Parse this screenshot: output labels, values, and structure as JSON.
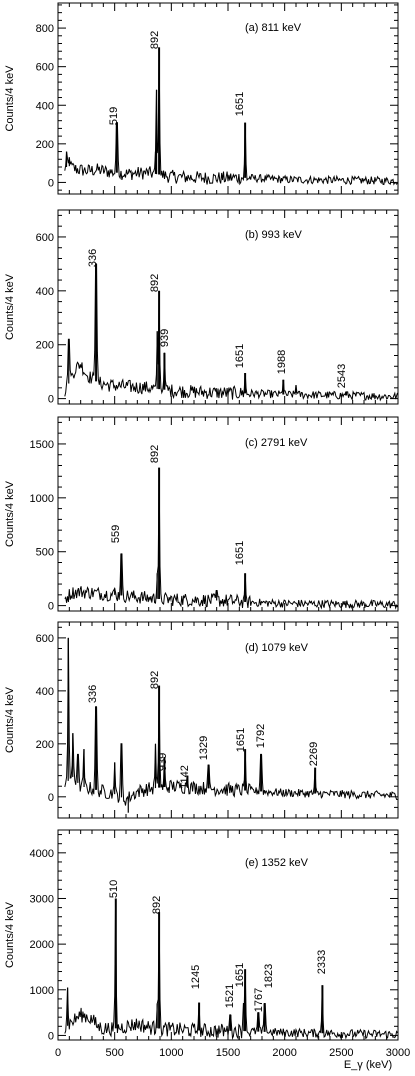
{
  "figure": {
    "xlabel": "E_γ (keV)",
    "x_ticks": [
      "0",
      "500",
      "1000",
      "1500",
      "2000",
      "2500",
      "3000"
    ]
  },
  "chart_data": [
    {
      "type": "line",
      "panel": "a",
      "title": "(a) 811 keV",
      "ylabel": "Counts/4 keV",
      "xlim": [
        0,
        3000
      ],
      "ylim": [
        -60,
        930
      ],
      "y_ticks": [
        0,
        200,
        400,
        600,
        800
      ],
      "grid": false,
      "baseline": [
        [
          40,
          10
        ],
        [
          80,
          90
        ],
        [
          150,
          70
        ],
        [
          250,
          60
        ],
        [
          350,
          65
        ],
        [
          450,
          55
        ],
        [
          600,
          45
        ],
        [
          800,
          50
        ],
        [
          1000,
          30
        ],
        [
          1200,
          25
        ],
        [
          1400,
          22
        ],
        [
          1600,
          25
        ],
        [
          1800,
          20
        ],
        [
          2000,
          15
        ],
        [
          2400,
          12
        ],
        [
          3000,
          8
        ]
      ],
      "peaks": [
        [
          519,
          310,
          1
        ],
        [
          892,
          700,
          1
        ],
        [
          870,
          480,
          0
        ],
        [
          860,
          160,
          0
        ],
        [
          1651,
          310,
          1
        ],
        [
          75,
          160,
          0
        ],
        [
          100,
          130,
          0
        ]
      ],
      "labels": [
        "519",
        "892",
        "1651"
      ]
    },
    {
      "type": "line",
      "panel": "b",
      "title": "(b) 993 keV",
      "ylabel": "Counts/4 keV",
      "xlim": [
        0,
        3000
      ],
      "ylim": [
        -20,
        700
      ],
      "y_ticks": [
        0,
        200,
        400,
        600
      ],
      "grid": false,
      "baseline": [
        [
          50,
          20
        ],
        [
          100,
          60
        ],
        [
          150,
          110
        ],
        [
          200,
          130
        ],
        [
          250,
          90
        ],
        [
          350,
          60
        ],
        [
          450,
          50
        ],
        [
          600,
          45
        ],
        [
          800,
          40
        ],
        [
          1000,
          30
        ],
        [
          1200,
          25
        ],
        [
          1400,
          22
        ],
        [
          1600,
          20
        ],
        [
          2000,
          15
        ],
        [
          2500,
          12
        ],
        [
          3000,
          8
        ]
      ],
      "peaks": [
        [
          336,
          500,
          1
        ],
        [
          892,
          400,
          1
        ],
        [
          875,
          250,
          0
        ],
        [
          939,
          170,
          1
        ],
        [
          1651,
          95,
          1
        ],
        [
          1988,
          70,
          1
        ],
        [
          2100,
          50,
          0
        ],
        [
          2543,
          25,
          1
        ],
        [
          95,
          220,
          0
        ]
      ],
      "labels": [
        "336",
        "892",
        "939",
        "1651",
        "1988",
        "2543"
      ]
    },
    {
      "type": "line",
      "panel": "c",
      "title": "(c) 2791 keV",
      "ylabel": "Counts/4 keV",
      "xlim": [
        0,
        3000
      ],
      "ylim": [
        -50,
        1750
      ],
      "y_ticks": [
        0,
        500,
        1000,
        1500
      ],
      "grid": false,
      "baseline": [
        [
          60,
          60
        ],
        [
          120,
          120
        ],
        [
          200,
          130
        ],
        [
          300,
          120
        ],
        [
          400,
          110
        ],
        [
          500,
          100
        ],
        [
          700,
          80
        ],
        [
          900,
          60
        ],
        [
          1100,
          55
        ],
        [
          1300,
          50
        ],
        [
          1500,
          45
        ],
        [
          1700,
          30
        ],
        [
          2000,
          20
        ],
        [
          2500,
          15
        ],
        [
          3000,
          10
        ]
      ],
      "peaks": [
        [
          559,
          480,
          1
        ],
        [
          892,
          1280,
          1
        ],
        [
          875,
          300,
          0
        ],
        [
          1400,
          140,
          0
        ],
        [
          1651,
          300,
          1
        ],
        [
          500,
          160,
          0
        ]
      ],
      "labels": [
        "559",
        "892",
        "1651"
      ]
    },
    {
      "type": "line",
      "panel": "d",
      "title": "(d) 1079 keV",
      "ylabel": "Counts/4 keV",
      "xlim": [
        0,
        3000
      ],
      "ylim": [
        -80,
        660
      ],
      "y_ticks": [
        0,
        200,
        400,
        600
      ],
      "grid": false,
      "baseline": [
        [
          60,
          40
        ],
        [
          120,
          80
        ],
        [
          200,
          40
        ],
        [
          300,
          30
        ],
        [
          400,
          20
        ],
        [
          500,
          10
        ],
        [
          600,
          -10
        ],
        [
          700,
          20
        ],
        [
          800,
          30
        ],
        [
          1000,
          40
        ],
        [
          1200,
          35
        ],
        [
          1400,
          30
        ],
        [
          1600,
          25
        ],
        [
          2000,
          15
        ],
        [
          2500,
          10
        ],
        [
          3000,
          5
        ]
      ],
      "peaks": [
        [
          336,
          340,
          1
        ],
        [
          892,
          420,
          1
        ],
        [
          939,
          150,
          1
        ],
        [
          1142,
          80,
          1
        ],
        [
          1329,
          120,
          1
        ],
        [
          1651,
          180,
          1
        ],
        [
          1792,
          160,
          1
        ],
        [
          2269,
          110,
          1
        ],
        [
          130,
          240,
          0
        ],
        [
          175,
          160,
          0
        ],
        [
          230,
          180,
          0
        ],
        [
          90,
          600,
          0
        ],
        [
          500,
          130,
          0
        ],
        [
          560,
          200,
          0
        ],
        [
          620,
          -60,
          0
        ],
        [
          860,
          200,
          0
        ]
      ],
      "labels": [
        "336",
        "892",
        "939",
        "1142",
        "1329",
        "1651",
        "1792",
        "2269"
      ]
    },
    {
      "type": "line",
      "panel": "e",
      "title": "(e) 1352 keV",
      "ylabel": "Counts/4 keV",
      "xlim": [
        0,
        3000
      ],
      "ylim": [
        -100,
        4500
      ],
      "y_ticks": [
        0,
        1000,
        2000,
        3000,
        4000
      ],
      "grid": false,
      "baseline": [
        [
          50,
          120
        ],
        [
          100,
          250
        ],
        [
          150,
          350
        ],
        [
          200,
          450
        ],
        [
          250,
          420
        ],
        [
          300,
          350
        ],
        [
          350,
          200
        ],
        [
          400,
          150
        ],
        [
          500,
          150
        ],
        [
          600,
          200
        ],
        [
          700,
          250
        ],
        [
          800,
          180
        ],
        [
          900,
          150
        ],
        [
          1000,
          130
        ],
        [
          1200,
          110
        ],
        [
          1400,
          100
        ],
        [
          1600,
          100
        ],
        [
          1800,
          80
        ],
        [
          2000,
          60
        ],
        [
          2300,
          50
        ],
        [
          2500,
          40
        ],
        [
          3000,
          20
        ]
      ],
      "peaks": [
        [
          510,
          3000,
          1
        ],
        [
          892,
          2700,
          1
        ],
        [
          875,
          700,
          0
        ],
        [
          1245,
          720,
          1
        ],
        [
          1521,
          450,
          1
        ],
        [
          1651,
          1450,
          1
        ],
        [
          1640,
          700,
          0
        ],
        [
          1767,
          500,
          1
        ],
        [
          1823,
          700,
          1
        ],
        [
          2333,
          1100,
          1
        ],
        [
          85,
          1050,
          0
        ]
      ],
      "labels": [
        "510",
        "892",
        "1245",
        "1521",
        "1651",
        "1767",
        "1823",
        "2333"
      ]
    }
  ]
}
